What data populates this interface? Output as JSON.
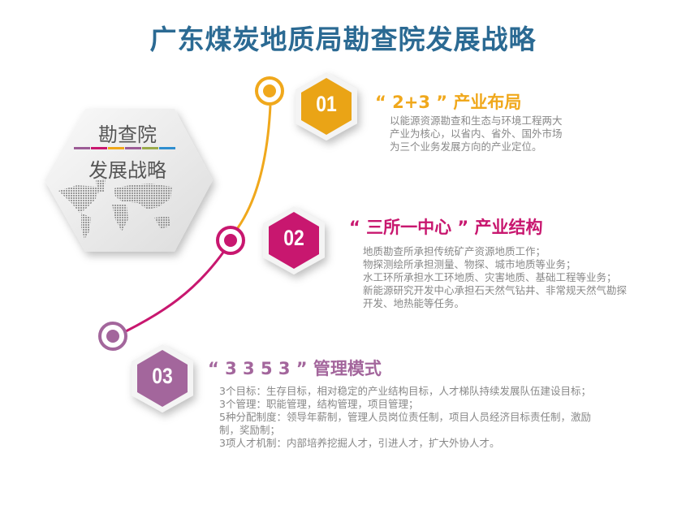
{
  "title": "广东煤炭地质局勘查院发展战略",
  "center": {
    "line1": "勘查院",
    "line2": "发展战略",
    "divider_colors": [
      "#9c5c96",
      "#c8176f",
      "#f0a81c",
      "#9c5c96",
      "#9aaa4a",
      "#2f8fd0"
    ]
  },
  "colors": {
    "orange": "#f0a81c",
    "magenta": "#c8176f",
    "purple": "#a3669c",
    "title": "#2b6a93"
  },
  "items": [
    {
      "number": "01",
      "heading": "“ 2+3 ” 产业布局",
      "lines": [
        "以能源资源勘查和生态与环境工程两大",
        "产业为核心，以省内、省外、国外市场",
        "为三个业务发展方向的产业定位。"
      ]
    },
    {
      "number": "02",
      "heading": "“ 三所一中心 ” 产业结构",
      "lines": [
        "地质勘查所承担传统矿产资源地质工作；",
        "物探测绘所承担测量、物探、城市地质等业务；",
        "水工环所承担水工环地质、灾害地质、基础工程等业务；",
        "新能源研究开发中心承担石天然气钻井、非常规天然气勘探",
        "开发、地热能等任务。"
      ]
    },
    {
      "number": "03",
      "heading": "“ 3 3 5 3 ” 管理模式",
      "lines": [
        "3个目标：生存目标，相对稳定的产业结构目标，人才梯队持续发展队伍建设目标；",
        "3个管理：职能管理，结构管理，项目管理；",
        "5种分配制度：领导年薪制，管理人员岗位责任制，项目人员经济目标责任制，激励",
        "制，奖励制；",
        "3项人才机制：内部培养挖掘人才，引进人才，扩大外协人才。"
      ]
    }
  ]
}
